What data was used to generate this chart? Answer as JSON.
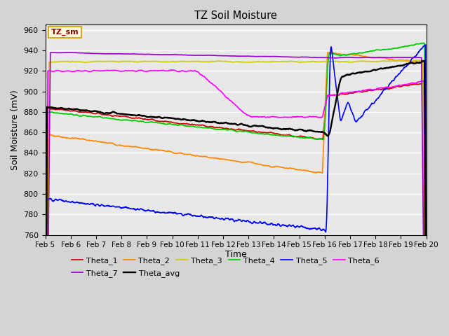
{
  "title": "TZ Soil Moisture",
  "xlabel": "Time",
  "ylabel": "Soil Moisture (mV)",
  "ylim": [
    760,
    965
  ],
  "yticks": [
    760,
    780,
    800,
    820,
    840,
    860,
    880,
    900,
    920,
    940,
    960
  ],
  "xlim": [
    0,
    15
  ],
  "xtick_labels": [
    "Feb 5",
    "Feb 6",
    "Feb 7",
    "Feb 8",
    "Feb 9",
    "Feb 10",
    "Feb 11",
    "Feb 12",
    "Feb 13",
    "Feb 14",
    "Feb 15",
    "Feb 16",
    "Feb 17",
    "Feb 18",
    "Feb 19",
    "Feb 20"
  ],
  "background_color": "#e8e8e8",
  "grid_color": "#ffffff",
  "legend_label": "TZ_sm",
  "series_colors": {
    "Theta_1": "#cc0000",
    "Theta_2": "#ff8800",
    "Theta_3": "#cccc00",
    "Theta_4": "#00cc00",
    "Theta_5": "#0000ff",
    "Theta_6": "#ff00ff",
    "Theta_7": "#9900cc",
    "Theta_avg": "#000000"
  },
  "figsize": [
    6.4,
    4.8
  ],
  "dpi": 100
}
